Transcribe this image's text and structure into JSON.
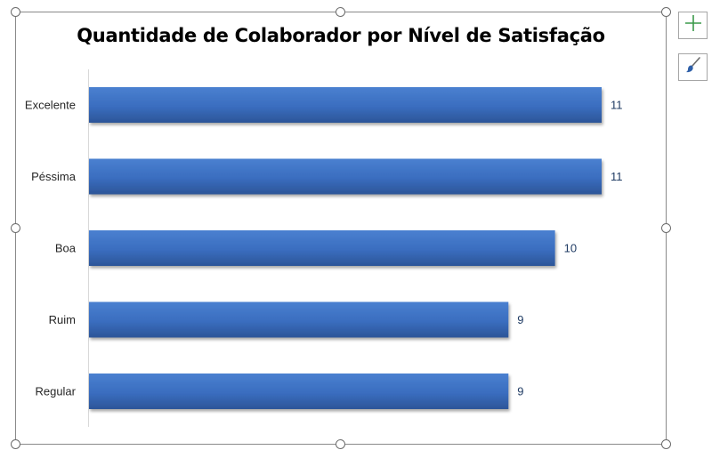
{
  "chart_data": {
    "type": "bar",
    "orientation": "horizontal",
    "title": "Quantidade de Colaborador por Nível de Satisfação",
    "categories": [
      "Excelente",
      "Péssima",
      "Boa",
      "Ruim",
      "Regular"
    ],
    "values": [
      11,
      11,
      10,
      9,
      9
    ],
    "data_labels": [
      "11",
      "11",
      "10",
      "9",
      "9"
    ],
    "xlim": [
      0,
      11
    ],
    "grid": false,
    "legend": "none",
    "bar_color": "#3b6fc2",
    "label_color": "#1f3b63"
  },
  "side_buttons": {
    "chart_elements": "chart-elements-plus-icon",
    "chart_styles": "chart-styles-brush-icon"
  },
  "colors": {
    "plus_icon": "#3a9a4a",
    "brush_icon": "#2e5fa8"
  }
}
